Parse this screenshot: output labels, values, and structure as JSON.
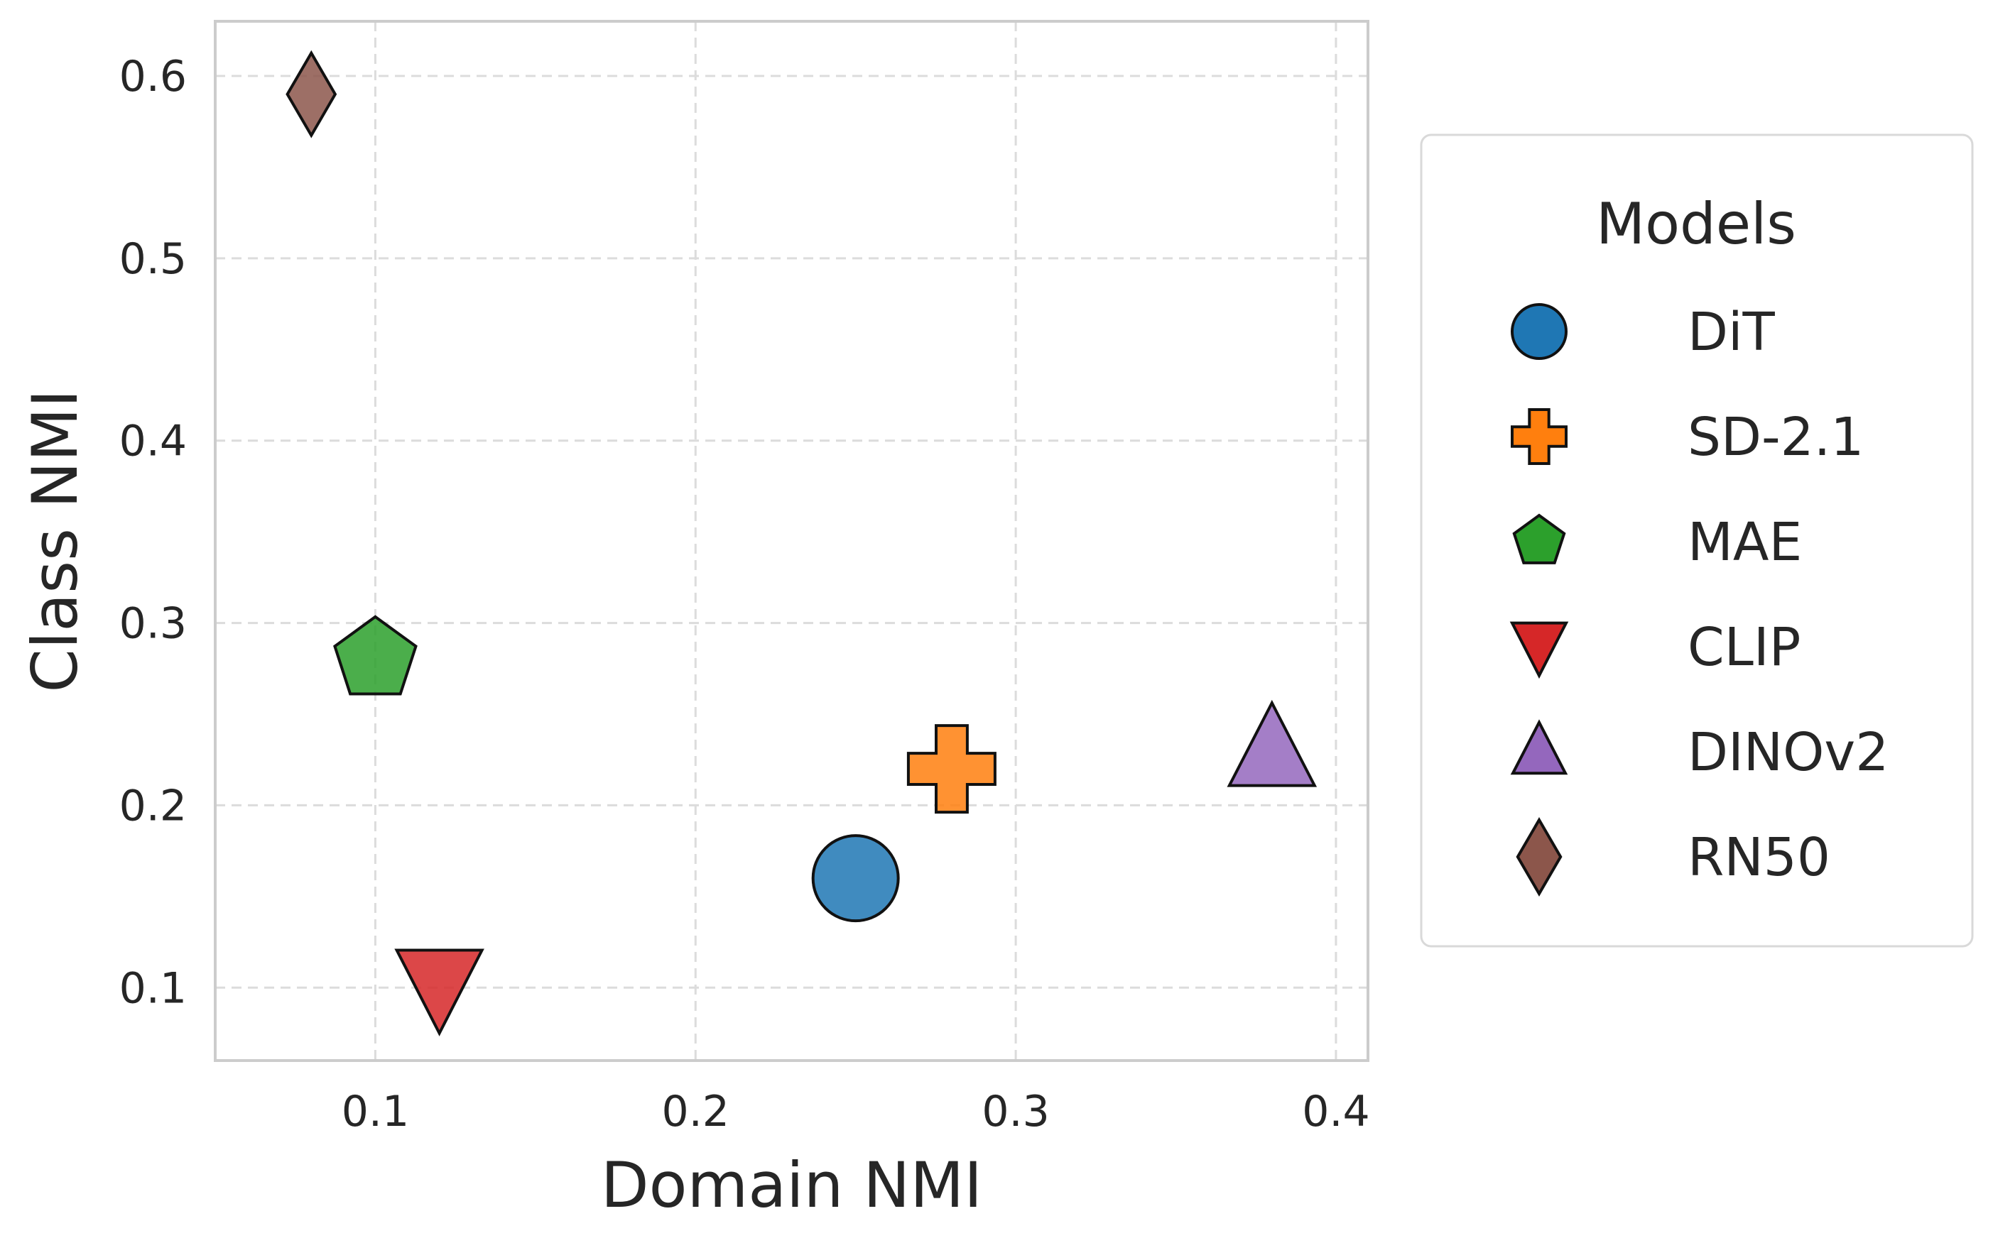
{
  "chart_data": {
    "type": "scatter",
    "title": "",
    "xlabel": "Domain NMI",
    "ylabel": "Class NMI",
    "xlim": [
      0.05,
      0.41
    ],
    "ylim": [
      0.06,
      0.63
    ],
    "xticks": [
      0.1,
      0.2,
      0.3,
      0.4
    ],
    "yticks": [
      0.1,
      0.2,
      0.3,
      0.4,
      0.5,
      0.6
    ],
    "xtick_labels": [
      "0.1",
      "0.2",
      "0.3",
      "0.4"
    ],
    "ytick_labels": [
      "0.1",
      "0.2",
      "0.3",
      "0.4",
      "0.5",
      "0.6"
    ],
    "grid": true,
    "legend": {
      "title": "Models",
      "placement": "outside-right"
    },
    "series": [
      {
        "name": "DiT",
        "marker": "circle",
        "color": "#1f77b4",
        "x": 0.25,
        "y": 0.16
      },
      {
        "name": "SD-2.1",
        "marker": "plus",
        "color": "#ff7f0e",
        "x": 0.28,
        "y": 0.22
      },
      {
        "name": "MAE",
        "marker": "pentagon",
        "color": "#2ca02c",
        "x": 0.1,
        "y": 0.28
      },
      {
        "name": "CLIP",
        "marker": "triangle-down",
        "color": "#d62728",
        "x": 0.12,
        "y": 0.1
      },
      {
        "name": "DINOv2",
        "marker": "triangle-up",
        "color": "#9467bd",
        "x": 0.38,
        "y": 0.23
      },
      {
        "name": "RN50",
        "marker": "diamond",
        "color": "#8c564b",
        "x": 0.08,
        "y": 0.59
      }
    ]
  }
}
